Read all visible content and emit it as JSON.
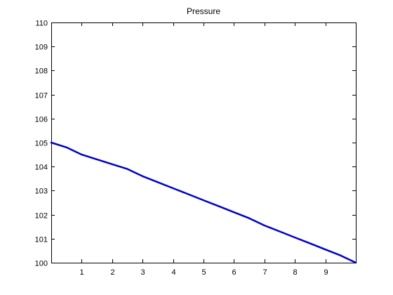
{
  "chart_data": {
    "type": "line",
    "title": "Pressure",
    "xlabel": "",
    "ylabel": "",
    "xlim": [
      0,
      10
    ],
    "ylim": [
      100,
      110
    ],
    "x_ticks": [
      1,
      2,
      3,
      4,
      5,
      6,
      7,
      8,
      9
    ],
    "y_ticks": [
      100,
      101,
      102,
      103,
      104,
      105,
      106,
      107,
      108,
      109,
      110
    ],
    "grid": false,
    "series": [
      {
        "color": "#0000cc",
        "x": [
          0,
          0.5,
          1,
          1.5,
          2,
          2.5,
          3,
          3.5,
          4,
          4.5,
          5,
          5.5,
          6,
          6.5,
          7,
          7.5,
          8,
          8.5,
          9,
          9.5,
          10
        ],
        "y": [
          105.0,
          104.8,
          104.5,
          104.3,
          104.1,
          103.9,
          103.6,
          103.35,
          103.1,
          102.85,
          102.6,
          102.35,
          102.1,
          101.85,
          101.55,
          101.3,
          101.05,
          100.8,
          100.55,
          100.3,
          100.0
        ]
      }
    ]
  }
}
